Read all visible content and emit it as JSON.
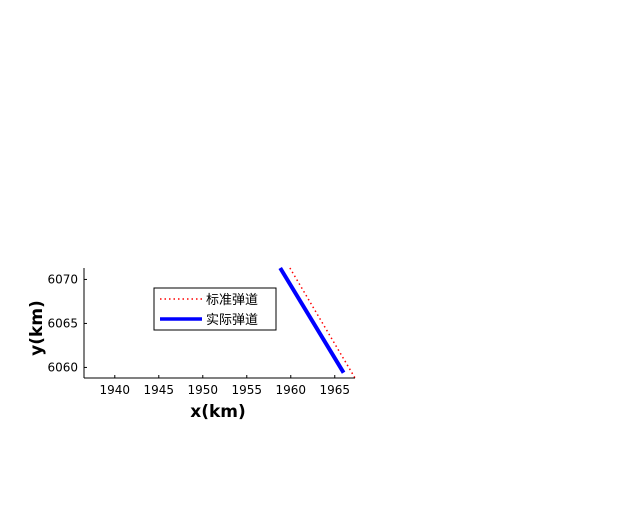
{
  "chart_data": {
    "type": "line",
    "xlabel": "x(km)",
    "ylabel": "y(km)",
    "xlim": [
      1936.5,
      1967.3
    ],
    "ylim": [
      6058.8,
      6071.3
    ],
    "xticks": [
      1940,
      1945,
      1950,
      1955,
      1960,
      1965
    ],
    "yticks": [
      6060,
      6065,
      6070
    ],
    "grid": false,
    "legend_position": "upper-center",
    "series": [
      {
        "name": "标准弹道",
        "style": "dotted",
        "color": "#ff0000",
        "x": [
          1959.9,
          1967.3
        ],
        "y": [
          6071.3,
          6058.8
        ]
      },
      {
        "name": "实际弹道",
        "style": "solid",
        "color": "#0000ff",
        "x": [
          1958.8,
          1966.0
        ],
        "y": [
          6071.3,
          6059.4
        ]
      }
    ]
  }
}
